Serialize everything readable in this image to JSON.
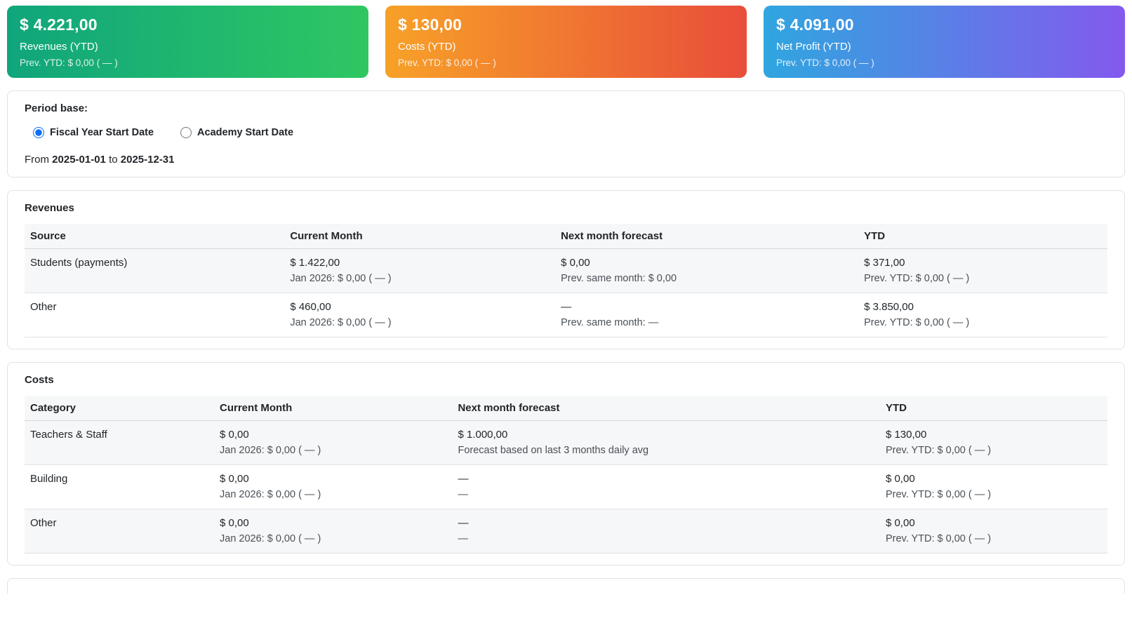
{
  "kpi_cards": [
    {
      "amount": "$ 4.221,00",
      "label": "Revenues (YTD)",
      "prev": "Prev. YTD: $ 0,00 ( — )",
      "gradient_start": "#10a57c",
      "gradient_end": "#2fc762"
    },
    {
      "amount": "$ 130,00",
      "label": "Costs (YTD)",
      "prev": "Prev. YTD: $ 0,00 ( — )",
      "gradient_start": "#f7a128",
      "gradient_end": "#e94d3a"
    },
    {
      "amount": "$ 4.091,00",
      "label": "Net Profit (YTD)",
      "prev": "Prev. YTD: $ 0,00 ( — )",
      "gradient_start": "#2fa6df",
      "gradient_end": "#8459ee"
    }
  ],
  "period": {
    "title": "Period base:",
    "options": [
      {
        "label": "Fiscal Year Start Date",
        "checked": "checked"
      },
      {
        "label": "Academy Start Date"
      }
    ],
    "from_label": "From",
    "start_date": "2025-01-01",
    "to_label": "to",
    "end_date": "2025-12-31"
  },
  "revenues": {
    "title": "Revenues",
    "headers": [
      "Source",
      "Current Month",
      "Next month forecast",
      "YTD"
    ],
    "rows": [
      {
        "name": "Students (payments)",
        "current": "$ 1.422,00",
        "current_sub": "Jan 2026: $ 0,00 ( — )",
        "forecast": "$ 0,00",
        "forecast_sub": "Prev. same month: $ 0,00",
        "ytd": "$ 371,00",
        "ytd_sub": "Prev. YTD: $ 0,00 ( — )"
      },
      {
        "name": "Other",
        "current": "$ 460,00",
        "current_sub": "Jan 2026: $ 0,00 ( — )",
        "forecast": "—",
        "forecast_sub": "Prev. same month: —",
        "ytd": "$ 3.850,00",
        "ytd_sub": "Prev. YTD: $ 0,00 ( — )"
      }
    ]
  },
  "costs": {
    "title": "Costs",
    "headers": [
      "Category",
      "Current Month",
      "Next month forecast",
      "YTD"
    ],
    "rows": [
      {
        "name": "Teachers & Staff",
        "current": "$ 0,00",
        "current_sub": "Jan 2026: $ 0,00 ( — )",
        "forecast": "$ 1.000,00",
        "forecast_sub": "Forecast based on last 3 months daily avg",
        "ytd": "$ 130,00",
        "ytd_sub": "Prev. YTD: $ 0,00 ( — )"
      },
      {
        "name": "Building",
        "current": "$ 0,00",
        "current_sub": "Jan 2026: $ 0,00 ( — )",
        "forecast": "—",
        "forecast_sub": "—",
        "ytd": "$ 0,00",
        "ytd_sub": "Prev. YTD: $ 0,00 ( — )"
      },
      {
        "name": "Other",
        "current": "$ 0,00",
        "current_sub": "Jan 2026: $ 0,00 ( — )",
        "forecast": "—",
        "forecast_sub": "—",
        "ytd": "$ 0,00",
        "ytd_sub": "Prev. YTD: $ 0,00 ( — )"
      }
    ]
  }
}
